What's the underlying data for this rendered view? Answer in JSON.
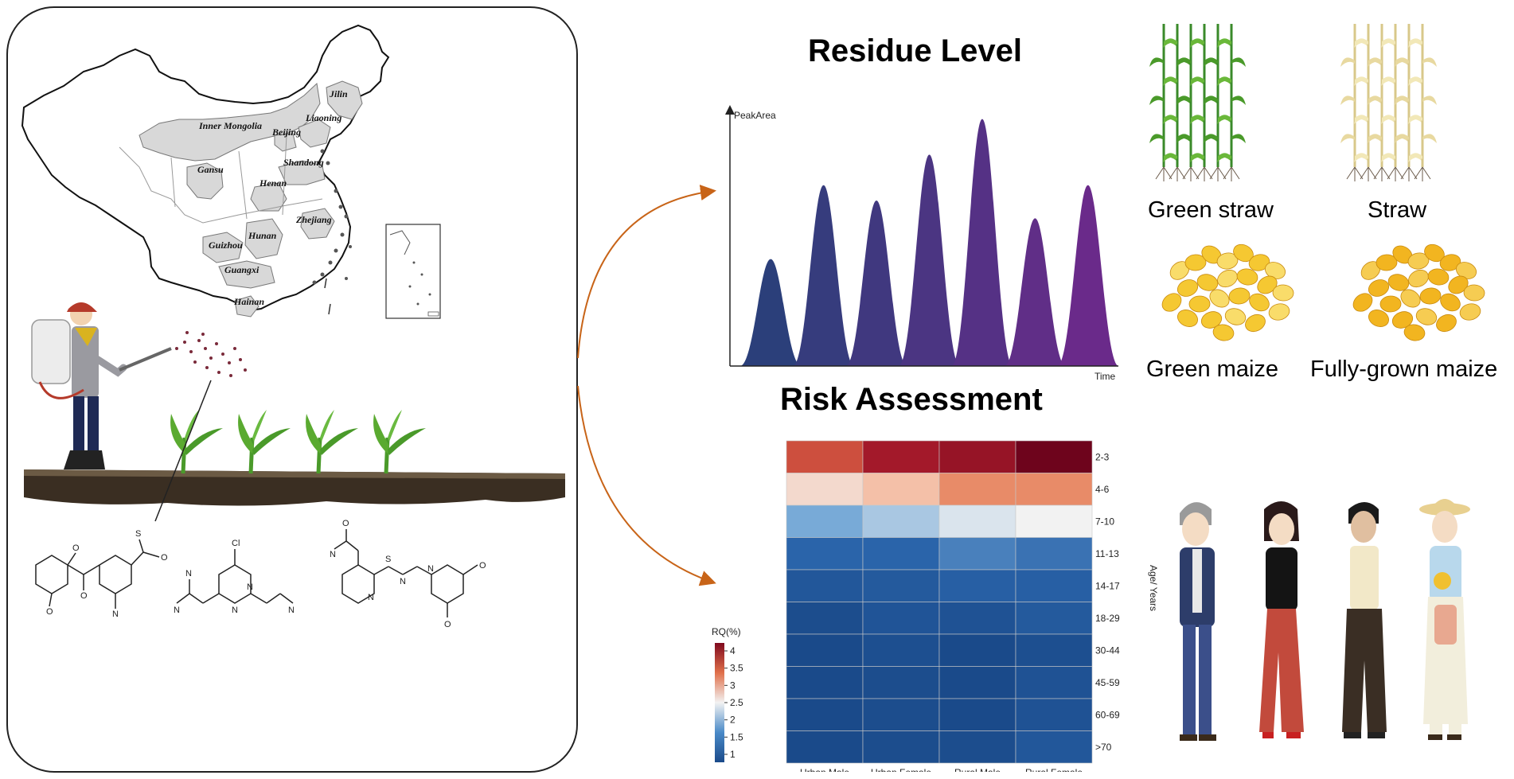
{
  "map": {
    "provinces": [
      "Jilin",
      "Liaoning",
      "Inner Mongolia",
      "Beijing",
      "Gansu",
      "Shandong",
      "Henan",
      "Zhejiang",
      "Hunan",
      "Guizhou",
      "Guangxi",
      "Hainan"
    ]
  },
  "residue": {
    "title": "Residue Level",
    "y_axis_label": "PeakArea",
    "x_axis_label": "Time"
  },
  "risk": {
    "title": "Risk Assessment"
  },
  "crops": {
    "green_straw": "Green straw",
    "straw": "Straw",
    "green_maize": "Green maize",
    "fully_grown_maize": "Fully-grown maize"
  },
  "colors": {
    "peak_start": "#2b3f7a",
    "peak_end": "#6a2a8a",
    "arrow": "#c86418",
    "green_leaf": "#4a9a2a",
    "dry_leaf": "#e8d9a0",
    "kernel": "#f2b520"
  },
  "chart_data": [
    {
      "type": "area",
      "title": "Residue Level",
      "xlabel": "Time",
      "ylabel": "PeakArea",
      "peaks": [
        0.42,
        0.71,
        0.65,
        0.83,
        0.97,
        0.58,
        0.71
      ]
    },
    {
      "type": "heatmap",
      "title": "Risk Assessment",
      "columns": [
        "Urban.Male",
        "Urban.Female",
        "Rural.Male",
        "Rural.Female"
      ],
      "rows": [
        "2-3",
        "4-6",
        "7-10",
        "11-13",
        "14-17",
        "18-29",
        "30-44",
        "45-59",
        "60-69",
        ">70"
      ],
      "values": [
        [
          3.7,
          4.1,
          4.2,
          4.5
        ],
        [
          2.7,
          2.9,
          3.3,
          3.3
        ],
        [
          2.0,
          2.2,
          2.4,
          2.5
        ],
        [
          1.5,
          1.5,
          1.7,
          1.6
        ],
        [
          1.25,
          1.3,
          1.4,
          1.4
        ],
        [
          1.05,
          1.2,
          1.15,
          1.3
        ],
        [
          1.0,
          1.1,
          0.95,
          1.1
        ],
        [
          1.0,
          1.05,
          1.0,
          1.15
        ],
        [
          1.0,
          1.05,
          1.0,
          1.15
        ],
        [
          1.0,
          1.05,
          1.05,
          1.25
        ]
      ],
      "ylabel": "Age/ Years",
      "legend": {
        "title": "RQ(%)",
        "ticks": [
          "4",
          "3.5",
          "3",
          "2.5",
          "2",
          "1.5",
          "1"
        ]
      }
    }
  ]
}
